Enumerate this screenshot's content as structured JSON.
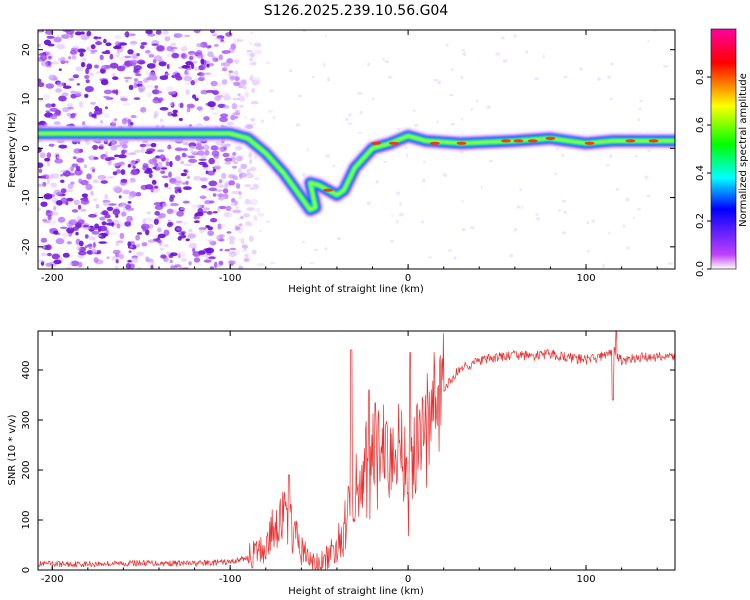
{
  "title": "S126.2025.239.10.56.G04",
  "chart_data": [
    {
      "type": "heatmap",
      "name": "spectrogram",
      "xlabel": "Height of straight line (km)",
      "ylabel": "Frequency (Hz)",
      "xlim": [
        -208,
        150
      ],
      "ylim": [
        -24.5,
        24
      ],
      "xticks": [
        -200,
        -100,
        0,
        100
      ],
      "yticks": [
        -20,
        -10,
        0,
        10,
        20
      ],
      "ridge": [
        {
          "x": -210,
          "f": 3
        },
        {
          "x": -100,
          "f": 3
        },
        {
          "x": -90,
          "f": 2
        },
        {
          "x": -80,
          "f": -1
        },
        {
          "x": -70,
          "f": -5
        },
        {
          "x": -62,
          "f": -9
        },
        {
          "x": -55,
          "f": -12.5
        },
        {
          "x": -52,
          "f": -12
        },
        {
          "x": -55,
          "f": -7
        },
        {
          "x": -50,
          "f": -7.5
        },
        {
          "x": -40,
          "f": -9.5
        },
        {
          "x": -36,
          "f": -8.5
        },
        {
          "x": -30,
          "f": -4
        },
        {
          "x": -20,
          "f": 0
        },
        {
          "x": -10,
          "f": 1
        },
        {
          "x": 0,
          "f": 2.5
        },
        {
          "x": 10,
          "f": 1.5
        },
        {
          "x": 30,
          "f": 1
        },
        {
          "x": 60,
          "f": 1.5
        },
        {
          "x": 80,
          "f": 2
        },
        {
          "x": 90,
          "f": 1.5
        },
        {
          "x": 100,
          "f": 1
        },
        {
          "x": 115,
          "f": 1.5
        },
        {
          "x": 150,
          "f": 1.5
        }
      ],
      "colorbar": {
        "label": "Normalized spectral amplitude",
        "range": [
          0,
          1
        ],
        "ticks": [
          "0.0",
          "0.2",
          "0.4",
          "0.6",
          "0.8"
        ],
        "colors": [
          "#ffffff",
          "#c040ff",
          "#0000ff",
          "#00ffff",
          "#00ff00",
          "#ffff00",
          "#ff0000",
          "#ff00a0"
        ]
      }
    },
    {
      "type": "line",
      "name": "snr",
      "xlabel": "Height of straight line (km)",
      "ylabel": "SNR (10 * v/v)",
      "xlim": [
        -208,
        150
      ],
      "ylim": [
        0,
        478
      ],
      "xticks": [
        -200,
        -100,
        0,
        100
      ],
      "yticks": [
        0,
        100,
        200,
        300,
        400
      ],
      "series": [
        {
          "name": "SNR",
          "color": "#e83030",
          "x": [
            -208,
            -180,
            -150,
            -120,
            -100,
            -90,
            -80,
            -75,
            -70,
            -65,
            -60,
            -55,
            -50,
            -45,
            -40,
            -35,
            -30,
            -25,
            -20,
            -15,
            -10,
            -5,
            0,
            5,
            10,
            15,
            20,
            25,
            30,
            40,
            50,
            60,
            70,
            80,
            90,
            100,
            110,
            115,
            120,
            130,
            150
          ],
          "values": [
            12,
            12,
            14,
            13,
            16,
            25,
            45,
            90,
            110,
            80,
            40,
            20,
            10,
            25,
            45,
            90,
            160,
            210,
            240,
            270,
            230,
            260,
            190,
            250,
            290,
            330,
            360,
            385,
            405,
            418,
            425,
            430,
            428,
            432,
            425,
            420,
            428,
            440,
            418,
            425,
            428
          ]
        }
      ],
      "spikes": [
        {
          "x": -67,
          "y": 190
        },
        {
          "x": -32,
          "y": 440
        },
        {
          "x": -22,
          "y": 360
        },
        {
          "x": 1,
          "y": 435
        },
        {
          "x": 117,
          "y": 478
        },
        {
          "x": 115,
          "y": 340
        }
      ]
    }
  ]
}
